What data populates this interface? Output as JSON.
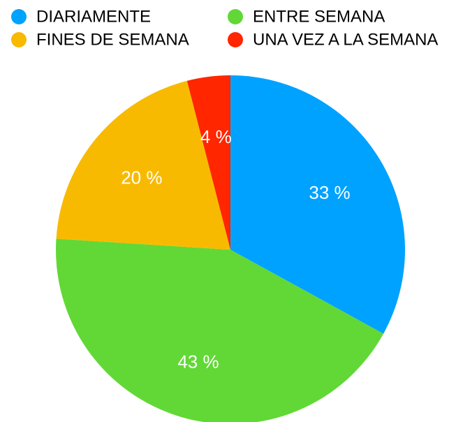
{
  "chart_data": {
    "type": "pie",
    "categories": [
      "DIARIAMENTE",
      "ENTRE SEMANA",
      "FINES DE SEMANA",
      "UNA VEZ A LA SEMANA"
    ],
    "values": [
      33,
      43,
      20,
      4
    ],
    "value_labels": [
      "33 %",
      "43 %",
      "20 %",
      "4 %"
    ],
    "colors": [
      "#00a2ff",
      "#61d836",
      "#f8ba00",
      "#ff2600"
    ],
    "legend": "top"
  }
}
